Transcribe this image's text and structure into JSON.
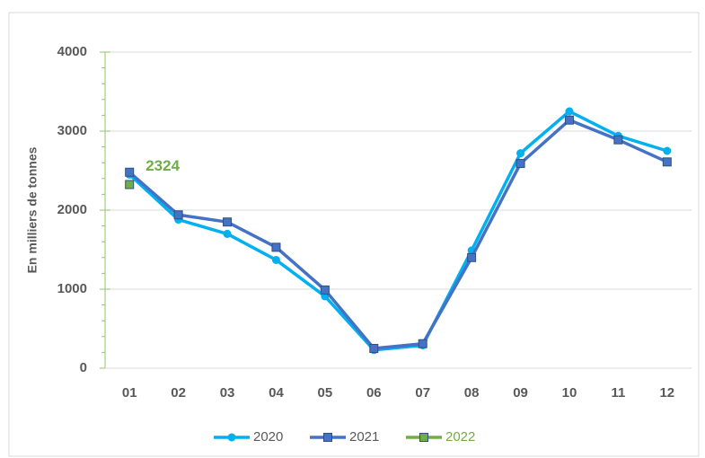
{
  "chart_data": {
    "type": "line",
    "y_label": "En milliers de tonnes",
    "categories": [
      "01",
      "02",
      "03",
      "04",
      "05",
      "06",
      "07",
      "08",
      "09",
      "10",
      "11",
      "12"
    ],
    "series": [
      {
        "name": "2020",
        "color": "#00b0f0",
        "marker": "circle",
        "text_color": "#595959",
        "values": [
          2450,
          1880,
          1700,
          1370,
          910,
          230,
          290,
          1490,
          2720,
          3250,
          2940,
          2750
        ]
      },
      {
        "name": "2021",
        "color": "#4472c4",
        "marker": "square",
        "text_color": "#595959",
        "values": [
          2480,
          1940,
          1850,
          1530,
          990,
          250,
          310,
          1400,
          2590,
          3140,
          2890,
          2610
        ]
      },
      {
        "name": "2022",
        "color": "#70ad47",
        "marker": "square",
        "text_color": "#70ad47",
        "values": [
          2324,
          null,
          null,
          null,
          null,
          null,
          null,
          null,
          null,
          null,
          null,
          null
        ]
      }
    ],
    "data_labels": [
      {
        "series": 2,
        "index": 0
      }
    ],
    "ylim": [
      0,
      4000
    ],
    "yticks": [
      0,
      1000,
      2000,
      3000,
      4000
    ],
    "y_minor_ticks": [
      200,
      400,
      600,
      800,
      1200,
      1400,
      1600,
      1800,
      2200,
      2400,
      2600,
      2800,
      3200,
      3400,
      3600,
      3800
    ],
    "grid": true,
    "legend": "bottom"
  }
}
